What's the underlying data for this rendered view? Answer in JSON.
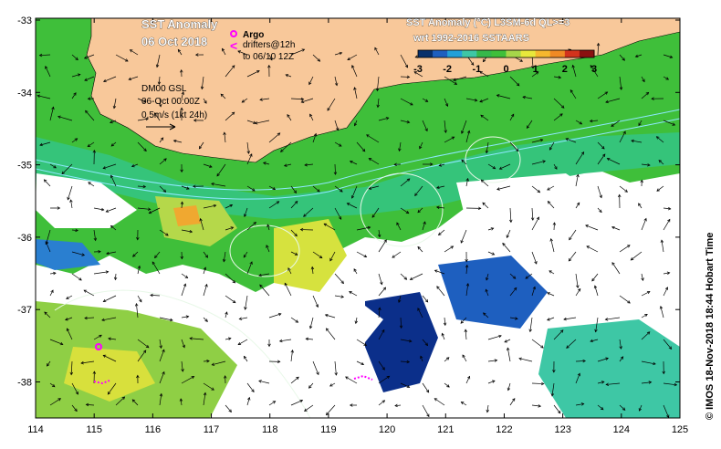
{
  "title": {
    "line1": "SST Anomaly",
    "line2": "06 Oct 2018"
  },
  "legend": {
    "argo_label": "Argo",
    "drifters_label": "drifters@12h",
    "drifters_to": "to 06/10 12Z"
  },
  "current_info": {
    "model": "DM00 GSL",
    "time": "06-Oct 00:00Z",
    "scale": "0.5m/s (1kt 24h)"
  },
  "colorbar": {
    "title_line1": "SST Anomaly (°C) L3SM-6d QL>=3",
    "title_line2": "wrt 1992-2016 SSTAARS",
    "ticks": [
      "-3",
      "-2",
      "-1",
      "0",
      "1",
      "2",
      "3"
    ],
    "colors": [
      "#08306b",
      "#1e5fbf",
      "#23a0d8",
      "#3ec7a5",
      "#35b84a",
      "#3fbf3a",
      "#a6d64a",
      "#e8e83c",
      "#f5b82e",
      "#f08a24",
      "#d2331c",
      "#8a1010"
    ]
  },
  "credit": "© IMOS 18-Nov-2018 18:44 Hobart Time",
  "axes": {
    "x_ticks": [
      "114",
      "115",
      "116",
      "117",
      "118",
      "119",
      "120",
      "121",
      "122",
      "123",
      "124",
      "125"
    ],
    "y_ticks": [
      "-33",
      "-34",
      "-35",
      "-36",
      "-37",
      "-38"
    ]
  },
  "colors": {
    "land": "#f8c89a",
    "ocean_nodata": "#ffffff",
    "argo": "#ff00ff",
    "drifter": "#ff00ff"
  }
}
